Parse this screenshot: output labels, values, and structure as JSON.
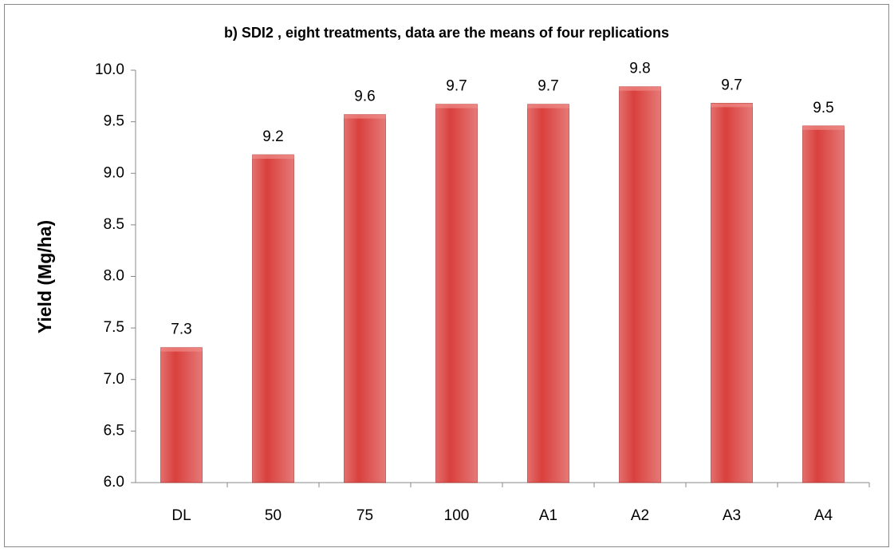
{
  "chart_data": {
    "type": "bar",
    "title": "b)  SDI2 , eight treatments, data are the means of four replications",
    "y_label": "Yield (Mg/ha)",
    "categories": [
      "DL",
      "50",
      "75",
      "100",
      "A1",
      "A2",
      "A3",
      "A4"
    ],
    "values": [
      7.31,
      9.18,
      9.57,
      9.67,
      9.67,
      9.84,
      9.68,
      9.46
    ],
    "value_labels": [
      "7.3",
      "9.2",
      "9.6",
      "9.7",
      "9.7",
      "9.8",
      "9.7",
      "9.5"
    ],
    "color": "#d9403d",
    "ylim": [
      6,
      10
    ],
    "yticks": [
      {
        "value": 6,
        "label": "6.0"
      },
      6.5,
      {
        "value": 7,
        "label": "7.0"
      },
      7.5,
      {
        "value": 8,
        "label": "8.0"
      },
      8.5,
      {
        "value": 9,
        "label": "9.0"
      },
      9.5,
      {
        "value": 10,
        "label": "10.0"
      }
    ],
    "grid": false
  }
}
